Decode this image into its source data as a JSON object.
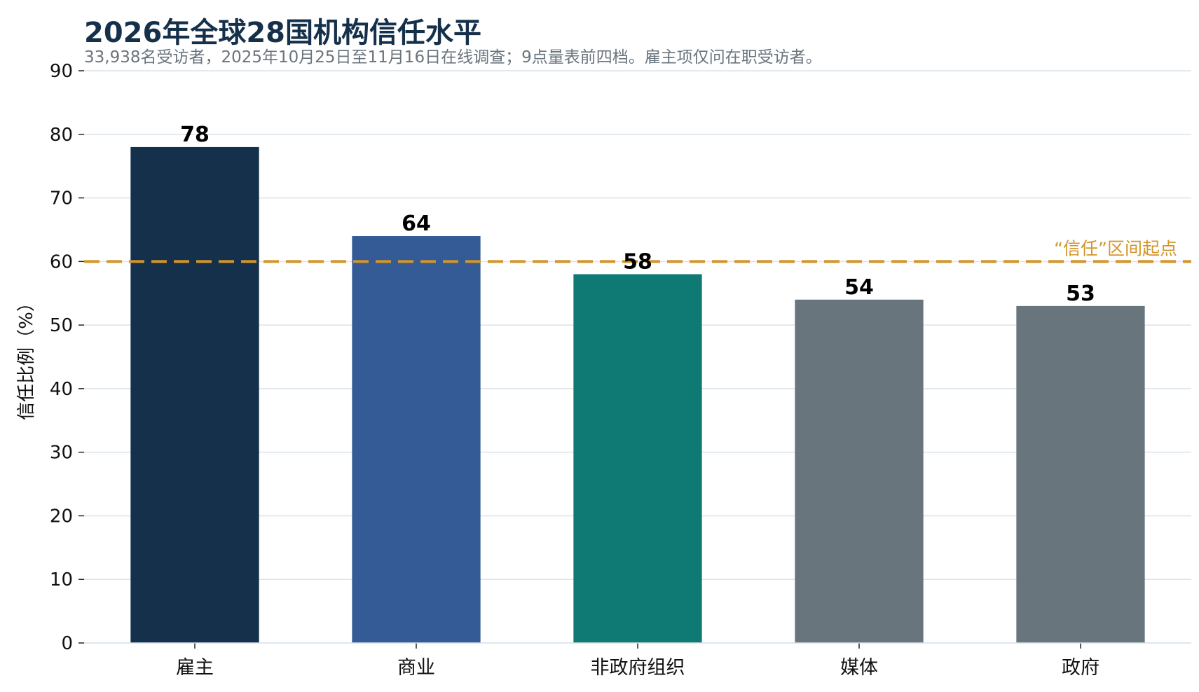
{
  "chart_data": {
    "type": "bar",
    "title": "2026年全球28国机构信任水平",
    "subtitle": "33,938名受访者，2025年10月25日至11月16日在线调查；9点量表前四档。雇主项仅问在职受访者。",
    "categories": [
      "雇主",
      "商业",
      "非政府组织",
      "媒体",
      "政府"
    ],
    "values": [
      78,
      64,
      58,
      54,
      53
    ],
    "value_labels": [
      "78",
      "64",
      "58",
      "54",
      "53"
    ],
    "bar_colors": [
      "#15304a",
      "#345b96",
      "#0f7a74",
      "#69757d",
      "#69757d"
    ],
    "xlabel": "",
    "ylabel": "信任比例（%）",
    "ylim": [
      0,
      90
    ],
    "yticks": [
      0,
      10,
      20,
      30,
      40,
      50,
      60,
      70,
      80,
      90
    ],
    "grid": true,
    "reference_line": {
      "value": 60,
      "label": "“信任”区间起点",
      "color": "#d4952a"
    },
    "colors": {
      "title": "#15304a",
      "subtitle": "#6a747d",
      "grid": "#d9e4ec",
      "axis_text": "#111111"
    }
  }
}
